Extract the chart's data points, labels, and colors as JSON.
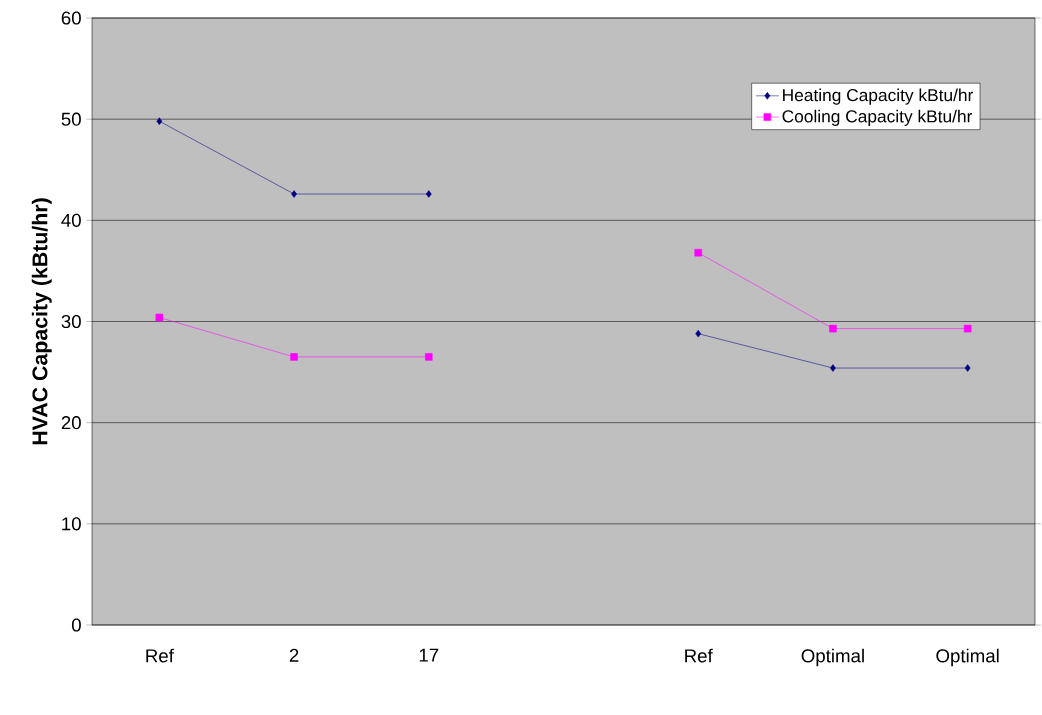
{
  "chart_data": {
    "type": "line",
    "ylabel": "HVAC Capacity (kBtu/hr)",
    "categories": [
      "Ref",
      "2",
      "17",
      null,
      "Ref",
      "Optimal",
      "Optimal"
    ],
    "series": [
      {
        "name": "Heating Capacity kBtu/hr",
        "color": "#000080",
        "marker": "diamond",
        "values": [
          49.8,
          42.6,
          42.6,
          null,
          28.8,
          25.4,
          25.4
        ]
      },
      {
        "name": "Cooling Capacity kBtu/hr",
        "color": "#ff00ff",
        "marker": "square",
        "values": [
          30.4,
          26.5,
          26.5,
          null,
          36.8,
          29.3,
          29.3
        ]
      }
    ],
    "ylim": [
      0,
      60
    ],
    "yticks": [
      0,
      10,
      20,
      30,
      40,
      50,
      60
    ],
    "grid": "y",
    "legend": "top right",
    "line_style": "solid"
  }
}
